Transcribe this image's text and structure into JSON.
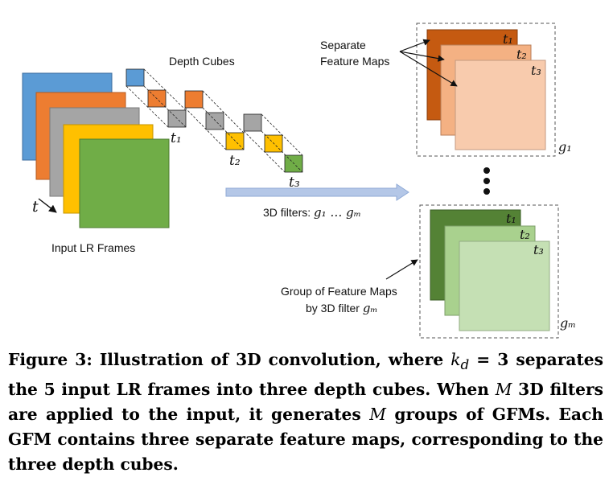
{
  "figure": {
    "labels": {
      "depth_cubes": "Depth Cubes",
      "separate_line1": "Separate",
      "separate_line2": "Feature Maps",
      "input_frames": "Input LR Frames",
      "time_axis": "t",
      "filters_prefix": "3D filters: ",
      "filters_range": "g₁ … gₘ",
      "group_line1": "Group of Feature Maps",
      "group_line2_prefix": "by 3D filter ",
      "group_line2_var": "gₘ",
      "g1": "g₁",
      "gM": "gₘ",
      "t1": "t₁",
      "t2": "t₂",
      "t3": "t₃",
      "ellipsis": "⋮"
    },
    "colors": {
      "frame_blue": "#5b9bd5",
      "frame_orange": "#ed7d31",
      "frame_gray": "#a5a5a5",
      "frame_yellow": "#ffc000",
      "frame_green": "#70ad47",
      "map1_dark": "#c55a11",
      "map1_mid": "#f4b183",
      "map1_light": "#f8cbad",
      "mapM_dark": "#548235",
      "mapM_mid": "#a9d18e",
      "mapM_light": "#c5e0b4",
      "arrow": "#b4c7e7"
    }
  },
  "caption": {
    "label": "Figure 3:",
    "text_a": " Illustration of 3D convolution, where ",
    "k_var": "k",
    "k_sub": "d",
    "text_b": " = 3 separates the 5 input LR frames into three depth cubes. When ",
    "m_var1": "M",
    "text_c": " 3D filters are applied to the input, it generates ",
    "m_var2": "M",
    "text_d": " groups of GFMs. Each GFM contains three separate feature maps, corresponding to the three depth cubes."
  }
}
